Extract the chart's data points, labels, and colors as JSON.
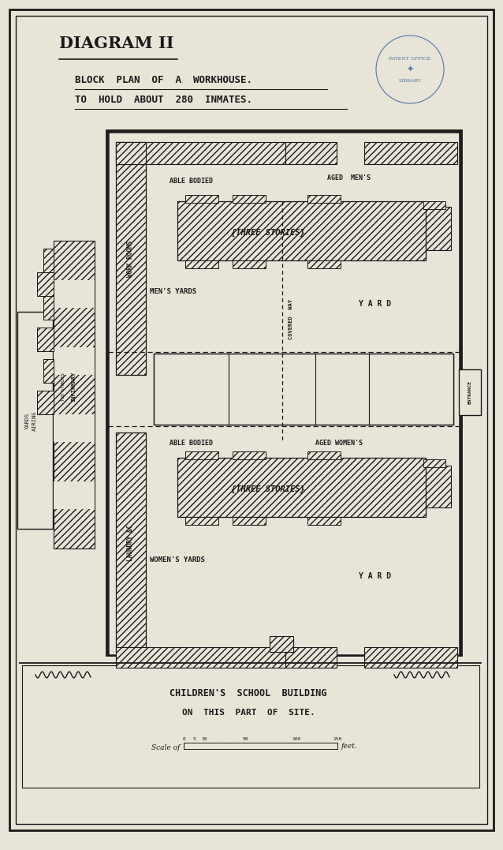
{
  "bg_color": "#e8e4d8",
  "paper_color": "#e8e4d8",
  "line_color": "#1a1a1a",
  "title1": "DIAGRAM II",
  "title2": "BLOCK  PLAN  OF  A  WORKHOUSE.",
  "title3": "TO  HOLD  ABOUT  280  INMATES.",
  "scale_text": "Scale of",
  "scale_feet": "feet.",
  "children_text1": "CHILDREN'S  SCHOOL  BUILDING",
  "children_text2": "ON  THIS  PART  OF  SITE.",
  "entrance_text": "ENTRANCE",
  "fig_width": 6.38,
  "fig_height": 10.77
}
